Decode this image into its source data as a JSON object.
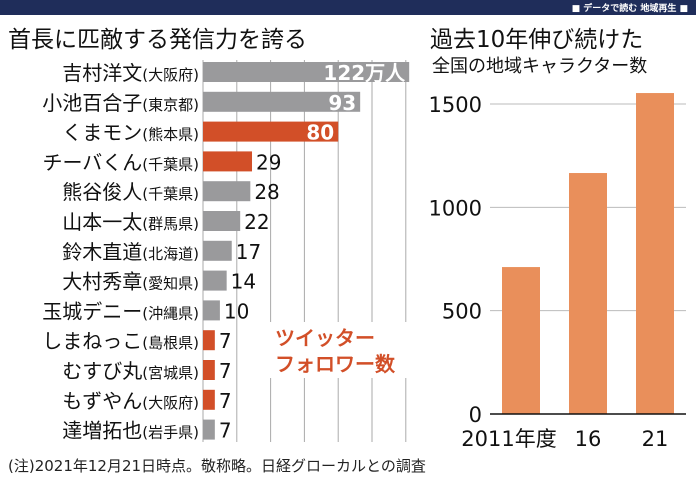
{
  "banner": "■ データで読む 地域再生 ■",
  "footnote": "(注)2021年12月21日時点。敬称略。日経グローカルとの調査",
  "chart_data": [
    {
      "type": "bar",
      "orientation": "horizontal",
      "title": "首長に匹敵する発信力を誇る",
      "annotation": "ツイッターフォロワー数",
      "annotation_lines": [
        "ツイッター",
        "フォロワー数"
      ],
      "unit": "万人",
      "xlim": [
        0,
        120
      ],
      "grid": true,
      "colors": {
        "highlight": "#d24f28",
        "default": "#9a9a9c"
      },
      "categories": [
        {
          "name": "吉村洋文",
          "pref": "(大阪府)",
          "value": 122,
          "label": "122万人",
          "highlight": false
        },
        {
          "name": "小池百合子",
          "pref": "(東京都)",
          "value": 93,
          "label": "93",
          "highlight": false
        },
        {
          "name": "くまモン",
          "pref": "(熊本県)",
          "value": 80,
          "label": "80",
          "highlight": true
        },
        {
          "name": "チーバくん",
          "pref": "(千葉県)",
          "value": 29,
          "label": "29",
          "highlight": true
        },
        {
          "name": "熊谷俊人",
          "pref": "(千葉県)",
          "value": 28,
          "label": "28",
          "highlight": false
        },
        {
          "name": "山本一太",
          "pref": "(群馬県)",
          "value": 22,
          "label": "22",
          "highlight": false
        },
        {
          "name": "鈴木直道",
          "pref": "(北海道)",
          "value": 17,
          "label": "17",
          "highlight": false
        },
        {
          "name": "大村秀章",
          "pref": "(愛知県)",
          "value": 14,
          "label": "14",
          "highlight": false
        },
        {
          "name": "玉城デニー",
          "pref": "(沖縄県)",
          "value": 10,
          "label": "10",
          "highlight": false
        },
        {
          "name": "しまねっこ",
          "pref": "(島根県)",
          "value": 7,
          "label": "7",
          "highlight": true
        },
        {
          "name": "むすび丸",
          "pref": "(宮城県)",
          "value": 7,
          "label": "7",
          "highlight": true
        },
        {
          "name": "もずやん",
          "pref": "(大阪府)",
          "value": 7,
          "label": "7",
          "highlight": true
        },
        {
          "name": "達増拓也",
          "pref": "(岩手県)",
          "value": 7,
          "label": "7",
          "highlight": false
        }
      ]
    },
    {
      "type": "bar",
      "title": "過去10年伸び続けた",
      "subtitle": "全国の地域キャラクター数",
      "color": "#e98f5b",
      "ylim": [
        0,
        1500
      ],
      "yticks": [
        0,
        500,
        1000,
        1500
      ],
      "grid": true,
      "categories": [
        "2011年度",
        "16",
        "21"
      ],
      "values": [
        711,
        1166,
        1553
      ]
    }
  ]
}
